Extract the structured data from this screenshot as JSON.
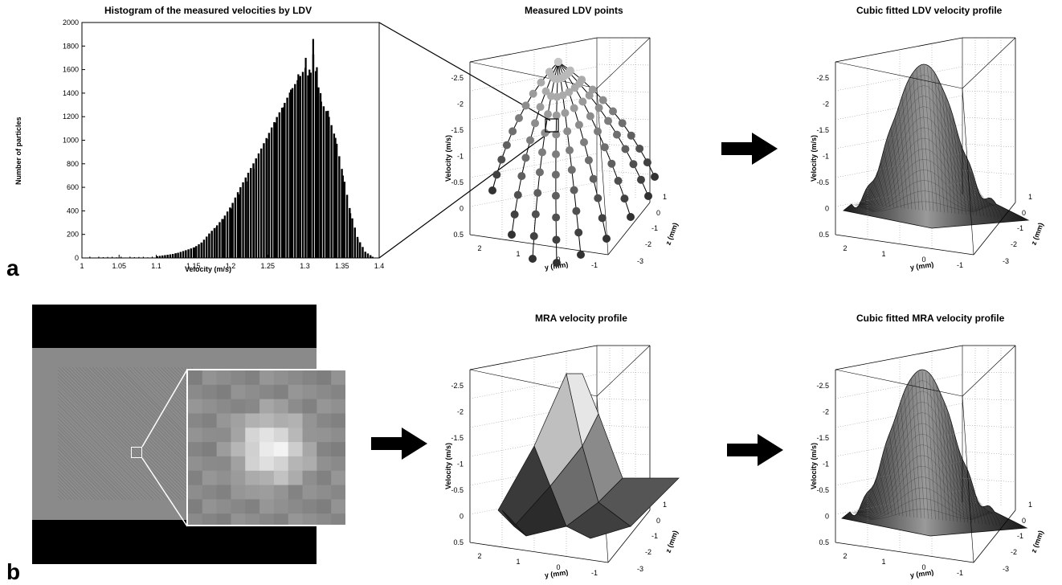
{
  "panel_labels": {
    "a": "a",
    "b": "b"
  },
  "chart_data": [
    {
      "type": "bar",
      "title": "Histogram of the measured velocities by LDV",
      "xlabel": "Velocity (m/s)",
      "ylabel": "Number of particles",
      "xlim": [
        1,
        1.4
      ],
      "ylim": [
        0,
        2000
      ],
      "xticks": [
        "1",
        "1.05",
        "1.1",
        "1.15",
        "1.2",
        "1.25",
        "1.3",
        "1.35",
        "1.4"
      ],
      "yticks": [
        "0",
        "200",
        "400",
        "600",
        "800",
        "1000",
        "1200",
        "1400",
        "1600",
        "1800",
        "2000"
      ],
      "x": [
        1.1,
        1.125,
        1.15,
        1.16,
        1.17,
        1.18,
        1.19,
        1.2,
        1.21,
        1.22,
        1.23,
        1.24,
        1.25,
        1.26,
        1.27,
        1.28,
        1.29,
        1.3,
        1.305,
        1.31,
        1.315,
        1.32,
        1.33,
        1.34,
        1.35,
        1.36,
        1.37,
        1.38,
        1.39
      ],
      "values": [
        15,
        40,
        90,
        130,
        200,
        260,
        330,
        420,
        540,
        650,
        760,
        880,
        1010,
        1150,
        1280,
        1430,
        1560,
        1700,
        1600,
        1860,
        1620,
        1400,
        1250,
        1020,
        700,
        380,
        160,
        50,
        10
      ]
    },
    {
      "type": "scatter",
      "title": "Measured LDV points",
      "zlabel": "Velocity (m/s)",
      "xlabel": "y (mm)",
      "ylabel": "z (mm)",
      "zticks": [
        "-2.5",
        "-2",
        "-1.5",
        "-1",
        "-0.5",
        "0",
        "0.5"
      ],
      "yticks": [
        "1",
        "0",
        "-1",
        "-2",
        "-3"
      ],
      "xticks": [
        "2",
        "1",
        "0",
        "-1"
      ]
    },
    {
      "type": "surface",
      "title": "Cubic fitted LDV velocity profile",
      "zlabel": "Velocity (m/s)",
      "xlabel": "y (mm)",
      "ylabel": "z (mm)",
      "zticks": [
        "-2.5",
        "-2",
        "-1.5",
        "-1",
        "-0.5",
        "0",
        "0.5"
      ],
      "yticks": [
        "1",
        "0",
        "-1",
        "-2",
        "-3"
      ],
      "xticks": [
        "2",
        "1",
        "0",
        "-1"
      ]
    },
    {
      "type": "surface",
      "title": "MRA velocity profile",
      "zlabel": "Velocity (m/s)",
      "xlabel": "y (mm)",
      "ylabel": "z (mm)",
      "zticks": [
        "-2.5",
        "-2",
        "-1.5",
        "-1",
        "-0.5",
        "0",
        "0.5"
      ],
      "yticks": [
        "1",
        "0",
        "-1",
        "-2",
        "-3"
      ],
      "xticks": [
        "2",
        "1",
        "0",
        "-1"
      ]
    },
    {
      "type": "surface",
      "title": "Cubic fitted MRA velocity profile",
      "zlabel": "Velocity (m/s)",
      "xlabel": "y (mm)",
      "ylabel": "z (mm)",
      "zticks": [
        "-2.5",
        "-2",
        "-1.5",
        "-1",
        "-0.5",
        "0",
        "0.5"
      ],
      "yticks": [
        "1",
        "0",
        "-1",
        "-2",
        "-3"
      ],
      "xticks": [
        "2",
        "1",
        "0",
        "-1"
      ]
    }
  ],
  "colors": {
    "bar": "#000000",
    "arrow": "#000000",
    "mri_bg": "#8a8a8a",
    "mri_band": "#000000"
  }
}
